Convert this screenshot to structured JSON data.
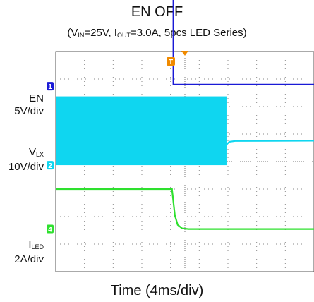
{
  "chart_data": {
    "type": "line",
    "title": "EN OFF",
    "subtitle": {
      "parts": [
        "(V",
        "IN",
        "=25V, I",
        "OUT",
        "=3.0A, 5pcs LED Series)"
      ]
    },
    "xlabel": "Time (4ms/div)",
    "x_unit": "ms",
    "xlim": [
      0,
      36
    ],
    "grid": true,
    "trigger_marker": "T",
    "channels": [
      {
        "label_lines": [
          [
            "EN"
          ],
          [
            "5V/div"
          ]
        ],
        "marker": "1",
        "color": "#1a1ad6",
        "volts_per_div": 5,
        "unit": "V",
        "ground_div": 6.74,
        "x": [
          0,
          16.4,
          16.4,
          36
        ],
        "y": [
          17.9,
          17.9,
          0.3,
          0.3
        ]
      },
      {
        "label_lines": [
          [
            "V",
            "LX"
          ],
          [
            "10V/div"
          ]
        ],
        "marker": "2",
        "color": "#0fd6f0",
        "volts_per_div": 10,
        "unit": "V",
        "ground_div": 3.87,
        "switching": {
          "x_start": 0,
          "x_end": 23.8,
          "low": 0,
          "high": 25
        },
        "x": [
          23.8,
          24.2,
          25,
          36
        ],
        "y": [
          7.5,
          8.5,
          8.8,
          8.9
        ]
      },
      {
        "label_lines": [
          [
            "I",
            "LED"
          ],
          [
            "2A/div"
          ]
        ],
        "marker": "4",
        "color": "#2ee02e",
        "volts_per_div": 2,
        "unit": "A",
        "ground_div": 1.55,
        "x": [
          0,
          16.2,
          16.6,
          17.0,
          17.6,
          18.5,
          36
        ],
        "y": [
          2.9,
          2.9,
          1.0,
          0.3,
          0.05,
          0,
          0
        ]
      }
    ]
  }
}
